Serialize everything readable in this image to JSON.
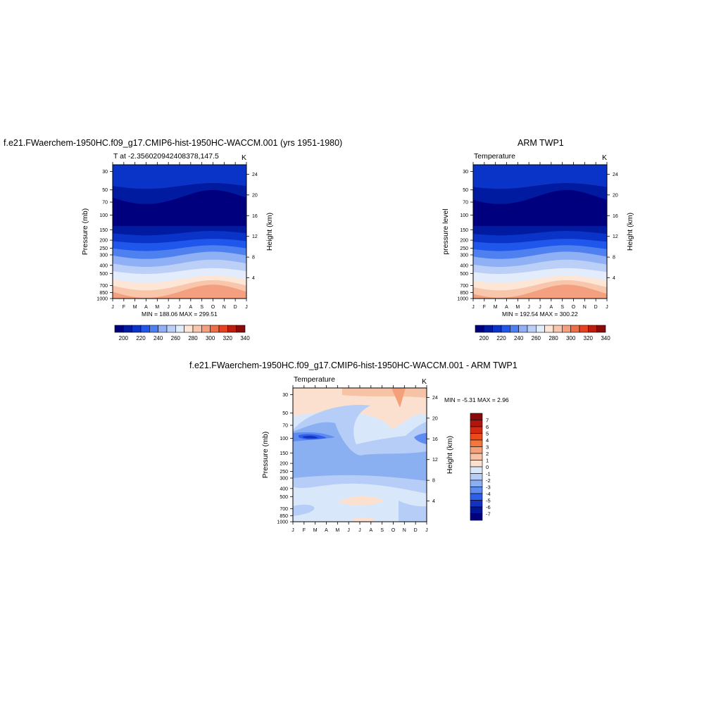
{
  "panels": [
    {
      "title": "f.e21.FWaerchem-1950HC.f09_g17.CMIP6-hist-1950HC-WACCM.001 (yrs 1951-1980)",
      "subtitle": "T at -2.356020942408378,147.5",
      "units": "K",
      "ylabel": "Pressure (mb)",
      "ylabel_right": "Height (km)",
      "minmax": "MIN = 188.06 MAX = 299.51"
    },
    {
      "title": "ARM TWP1",
      "subtitle": "Temperature",
      "units": "K",
      "ylabel": "pressure level",
      "ylabel_right": "Height (km)",
      "minmax": "MIN = 192.54 MAX = 300.22"
    },
    {
      "title": "f.e21.FWaerchem-1950HC.f09_g17.CMIP6-hist-1950HC-WACCM.001 - ARM TWP1",
      "subtitle": "Temperature",
      "units": "K",
      "ylabel": "Pressure (mb)",
      "ylabel_right": "Height (km)",
      "minmax": "MIN =  -5.31 MAX =   2.96"
    }
  ],
  "chart_data": [
    {
      "type": "heatmap",
      "x_ticks": [
        "J",
        "F",
        "M",
        "A",
        "M",
        "J",
        "J",
        "A",
        "S",
        "O",
        "N",
        "D",
        "J"
      ],
      "y_ticks": [
        30,
        50,
        70,
        100,
        150,
        200,
        250,
        300,
        400,
        500,
        700,
        850,
        1000
      ],
      "y_scale": "log",
      "y_range": [
        25,
        1000
      ],
      "right_ticks": [
        4,
        8,
        12,
        16,
        20,
        24
      ],
      "colorbar_labels": [
        200,
        220,
        240,
        260,
        280,
        300,
        320,
        340
      ],
      "min": 188.06,
      "max": 299.51
    },
    {
      "type": "heatmap",
      "x_ticks": [
        "J",
        "F",
        "M",
        "A",
        "M",
        "J",
        "J",
        "A",
        "S",
        "O",
        "N",
        "D",
        "J"
      ],
      "y_ticks": [
        30,
        50,
        70,
        100,
        150,
        200,
        250,
        300,
        400,
        500,
        700,
        850,
        1000
      ],
      "y_scale": "log",
      "y_range": [
        25,
        1000
      ],
      "right_ticks": [
        4,
        8,
        12,
        16,
        20,
        24
      ],
      "colorbar_labels": [
        200,
        220,
        240,
        260,
        280,
        300,
        320,
        340
      ],
      "min": 192.54,
      "max": 300.22
    },
    {
      "type": "heatmap",
      "x_ticks": [
        "J",
        "F",
        "M",
        "A",
        "M",
        "J",
        "J",
        "A",
        "S",
        "O",
        "N",
        "D",
        "J"
      ],
      "y_ticks": [
        30,
        50,
        70,
        100,
        150,
        200,
        250,
        300,
        400,
        500,
        700,
        850,
        1000
      ],
      "y_scale": "log",
      "y_range": [
        25,
        1000
      ],
      "right_ticks": [
        4,
        8,
        12,
        16,
        20,
        24
      ],
      "colorbar_labels": [
        7,
        6,
        5,
        4,
        3,
        2,
        1,
        0,
        -1,
        -2,
        -3,
        -4,
        -5,
        -6,
        -7
      ],
      "min": -5.31,
      "max": 2.96
    }
  ],
  "colors": {
    "abs_levels": [
      "#00007f",
      "#001aa0",
      "#0a33c8",
      "#1f56eb",
      "#4f80f0",
      "#8fb0f4",
      "#bcd0f7",
      "#e3ecfa",
      "#fde6d6",
      "#f8c6ab",
      "#f4a080",
      "#f06e47",
      "#e84120",
      "#bd1d0d",
      "#8a0a0a"
    ],
    "anom_levels": [
      "#8a0a0a",
      "#b2150c",
      "#d42a12",
      "#ec4a1a",
      "#f2773f",
      "#f4a07a",
      "#f6c3a6",
      "#fbe0cf",
      "#d9e7fb",
      "#b6cdf7",
      "#8ab0f2",
      "#5e8cf0",
      "#2e5eeb",
      "#1431c2",
      "#02169a",
      "#00007f"
    ]
  }
}
